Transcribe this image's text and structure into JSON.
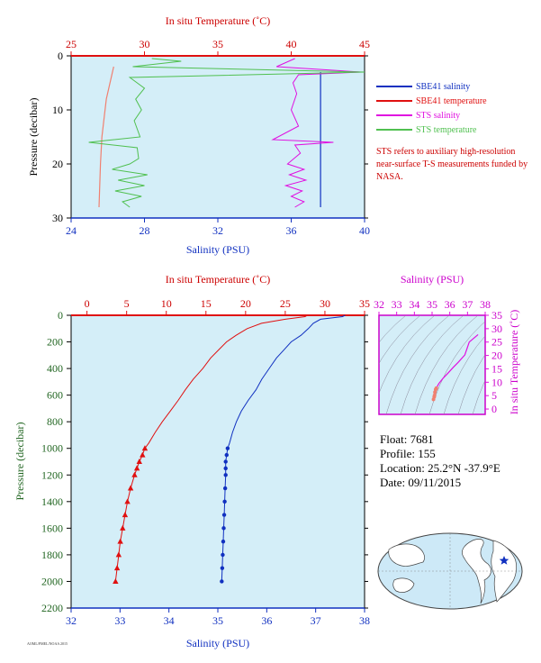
{
  "colors": {
    "blue": "#1030c0",
    "red": "#e01010",
    "magenta": "#e010e0",
    "green": "#50c050",
    "salmon": "#f08070",
    "bg": "#d4eef8",
    "ytitle": "#226622"
  },
  "legend": [
    {
      "label": "SBE41 salinity",
      "color": "#1030c0"
    },
    {
      "label": "SBE41 temperature",
      "color": "#e01010"
    },
    {
      "label": "STS salinity",
      "color": "#e010e0"
    },
    {
      "label": "STS temperature",
      "color": "#50c050"
    }
  ],
  "note": "STS refers to auxiliary high-resolution near-surface T-S measurements funded by NASA.",
  "info": {
    "float": "Float:  7681",
    "profile": "Profile:  155",
    "location": "Location:  25.2°N  -37.9°E",
    "date": "Date:  09/11/2015"
  },
  "footer_code": "AOML/PMEL/NOAA 2015",
  "chart_data": [
    {
      "type": "line",
      "name": "near-surface panel",
      "top_axis_label": "In situ Temperature (˚C)",
      "bottom_axis_label": "Salinity (PSU)",
      "ylabel": "Pressure (decibar)",
      "temp_range": [
        25,
        45
      ],
      "temp_ticks": [
        25,
        30,
        35,
        40,
        45
      ],
      "sal_range": [
        24,
        40
      ],
      "sal_ticks": [
        24,
        28,
        32,
        36,
        40
      ],
      "pressure_range": [
        0,
        30
      ],
      "pressure_ticks": [
        0,
        10,
        20,
        30
      ],
      "series": [
        {
          "name": "SBE41 salinity",
          "variable": "salinity",
          "pressure": [
            3,
            28
          ],
          "values": [
            37.6,
            37.6
          ]
        },
        {
          "name": "SBE41 temperature",
          "variable": "temperature",
          "pressure": [
            2,
            8,
            15,
            20,
            28
          ],
          "values": [
            27.9,
            27.4,
            27.1,
            27.0,
            26.9
          ]
        },
        {
          "name": "STS salinity",
          "variable": "salinity",
          "pressure": [
            0.5,
            2,
            3,
            3.5,
            5,
            7,
            10,
            13,
            15.5,
            16,
            16.5,
            18,
            20,
            21,
            22,
            23,
            24,
            25,
            26,
            27,
            28
          ],
          "values": [
            36.2,
            35.2,
            39.8,
            36.4,
            36.1,
            36.3,
            36.0,
            36.4,
            35.0,
            38.3,
            36.2,
            36.5,
            35.8,
            36.7,
            35.9,
            36.8,
            35.7,
            36.6,
            36.0,
            36.7,
            36.2
          ]
        },
        {
          "name": "STS temperature",
          "variable": "temperature",
          "pressure": [
            0.5,
            1,
            2,
            3,
            4,
            6,
            8,
            10,
            12,
            15,
            16,
            17,
            19,
            20,
            21,
            22,
            23,
            24,
            25,
            26,
            27,
            28
          ],
          "values": [
            30.5,
            32.5,
            29.2,
            45.0,
            29.0,
            30.0,
            29.4,
            29.8,
            29.3,
            29.7,
            26.2,
            29.5,
            29.6,
            29.0,
            27.8,
            30.2,
            28.2,
            30.0,
            28.0,
            29.8,
            28.5,
            29.0
          ]
        }
      ]
    },
    {
      "type": "line",
      "name": "full-depth panel",
      "top_axis_label": "In situ Temperature (˚C)",
      "bottom_axis_label": "Salinity (PSU)",
      "ylabel": "Pressure (decibar)",
      "temp_range": [
        -2,
        35
      ],
      "temp_ticks": [
        0,
        5,
        10,
        15,
        20,
        25,
        30,
        35
      ],
      "sal_range": [
        32,
        38
      ],
      "sal_ticks": [
        32,
        33,
        34,
        35,
        36,
        37,
        38
      ],
      "pressure_range": [
        0,
        2200
      ],
      "pressure_ticks": [
        0,
        200,
        400,
        600,
        800,
        1000,
        1200,
        1400,
        1600,
        1800,
        2000,
        2200
      ],
      "series": [
        {
          "name": "SBE41 temperature",
          "variable": "temperature",
          "pressure": [
            0,
            10,
            30,
            60,
            100,
            150,
            200,
            260,
            320,
            400,
            480,
            560,
            640,
            720,
            800,
            880,
            960,
            1000,
            1050,
            1100,
            1150,
            1200,
            1300,
            1400,
            1500,
            1600,
            1700,
            1800,
            1900,
            2000
          ],
          "values": [
            27.8,
            27.5,
            25.0,
            22.0,
            20.2,
            18.8,
            17.6,
            16.6,
            15.6,
            14.6,
            13.4,
            12.4,
            11.5,
            10.5,
            9.5,
            8.6,
            7.8,
            7.3,
            7.0,
            6.6,
            6.3,
            6.0,
            5.5,
            5.1,
            4.8,
            4.5,
            4.2,
            4.0,
            3.8,
            3.6
          ]
        },
        {
          "name": "SBE41 salinity",
          "variable": "salinity",
          "pressure": [
            0,
            10,
            30,
            60,
            100,
            150,
            200,
            260,
            320,
            400,
            480,
            560,
            640,
            720,
            800,
            880,
            960,
            1000,
            1050,
            1100,
            1150,
            1200,
            1300,
            1400,
            1500,
            1600,
            1700,
            1800,
            1900,
            2000
          ],
          "values": [
            37.6,
            37.55,
            37.1,
            36.95,
            36.85,
            36.7,
            36.5,
            36.35,
            36.2,
            36.05,
            35.9,
            35.78,
            35.62,
            35.48,
            35.38,
            35.3,
            35.24,
            35.2,
            35.18,
            35.16,
            35.16,
            35.16,
            35.15,
            35.14,
            35.13,
            35.12,
            35.11,
            35.1,
            35.09,
            35.08
          ]
        }
      ]
    },
    {
      "type": "scatter",
      "name": "T-S inset",
      "top_axis_label": "Salinity (PSU)",
      "right_axis_label": "In situ Temperature (˚C)",
      "sal_range": [
        32,
        38
      ],
      "sal_ticks": [
        32,
        33,
        34,
        35,
        36,
        37,
        38
      ],
      "temp_range": [
        -2,
        35
      ],
      "temp_ticks": [
        0,
        5,
        10,
        15,
        20,
        25,
        30,
        35
      ],
      "series": [
        {
          "name": "SBE41 T-S",
          "x": [
            37.6,
            37.1,
            36.85,
            36.5,
            36.2,
            35.9,
            35.62,
            35.38,
            35.24,
            35.2,
            35.16,
            35.14,
            35.12,
            35.08
          ],
          "y": [
            27.8,
            25.0,
            20.2,
            17.6,
            15.6,
            13.4,
            11.5,
            9.5,
            7.8,
            7.3,
            6.3,
            5.1,
            4.5,
            3.6
          ]
        }
      ]
    }
  ]
}
